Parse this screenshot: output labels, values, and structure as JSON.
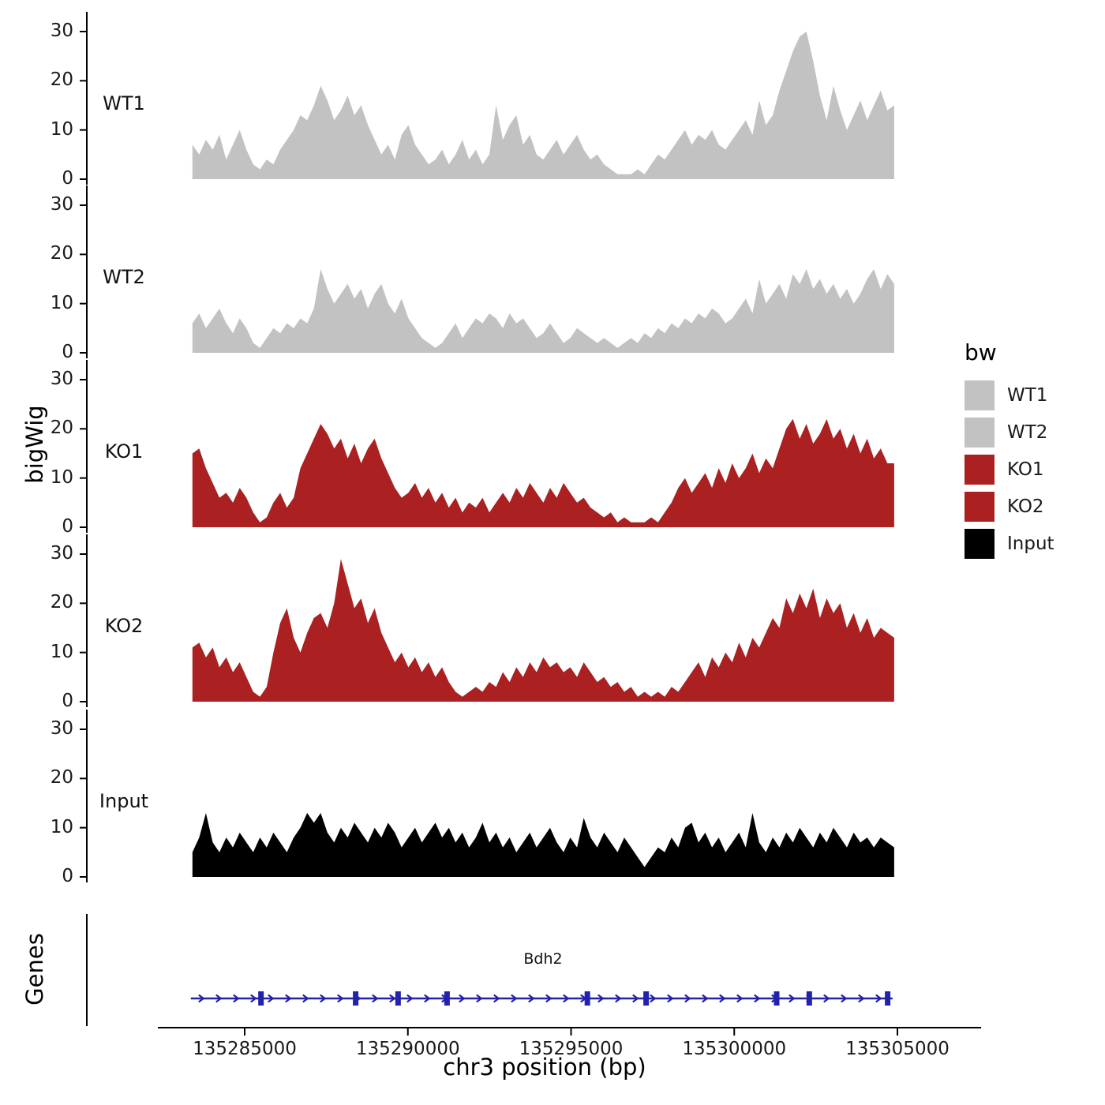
{
  "chart_data": {
    "type": "area",
    "title": "",
    "xlabel": "chr3 position (bp)",
    "ylabel": "bigWig",
    "ylim": [
      0,
      30
    ],
    "y_ticks": [
      30,
      20,
      10,
      0
    ],
    "x_ticks": [
      135285000,
      135290000,
      135295000,
      135300000,
      135305000
    ],
    "x_start": 135283400,
    "x_end": 135304900,
    "grid": "off",
    "legend_position": "right",
    "tracks": [
      {
        "name": "WT1",
        "color": "#c2c2c2",
        "values": [
          7,
          5,
          8,
          6,
          9,
          4,
          7,
          10,
          6,
          3,
          2,
          4,
          3,
          6,
          8,
          10,
          13,
          12,
          15,
          19,
          16,
          12,
          14,
          17,
          13,
          15,
          11,
          8,
          5,
          7,
          4,
          9,
          11,
          7,
          5,
          3,
          4,
          6,
          3,
          5,
          8,
          4,
          6,
          3,
          5,
          15,
          8,
          11,
          13,
          7,
          9,
          5,
          4,
          6,
          8,
          5,
          7,
          9,
          6,
          4,
          5,
          3,
          2,
          1,
          1,
          1,
          2,
          1,
          3,
          5,
          4,
          6,
          8,
          10,
          7,
          9,
          8,
          10,
          7,
          6,
          8,
          10,
          12,
          9,
          16,
          11,
          13,
          18,
          22,
          26,
          29,
          30,
          24,
          17,
          12,
          19,
          14,
          10,
          13,
          16,
          12,
          15,
          18,
          14,
          15
        ]
      },
      {
        "name": "WT2",
        "color": "#c2c2c2",
        "values": [
          6,
          8,
          5,
          7,
          9,
          6,
          4,
          7,
          5,
          2,
          1,
          3,
          5,
          4,
          6,
          5,
          7,
          6,
          9,
          17,
          13,
          10,
          12,
          14,
          11,
          13,
          9,
          12,
          14,
          10,
          8,
          11,
          7,
          5,
          3,
          2,
          1,
          2,
          4,
          6,
          3,
          5,
          7,
          6,
          8,
          7,
          5,
          8,
          6,
          7,
          5,
          3,
          4,
          6,
          4,
          2,
          3,
          5,
          4,
          3,
          2,
          3,
          2,
          1,
          2,
          3,
          2,
          4,
          3,
          5,
          4,
          6,
          5,
          7,
          6,
          8,
          7,
          9,
          8,
          6,
          7,
          9,
          11,
          8,
          15,
          10,
          12,
          14,
          11,
          16,
          14,
          17,
          13,
          15,
          12,
          14,
          11,
          13,
          10,
          12,
          15,
          17,
          13,
          16,
          14
        ]
      },
      {
        "name": "KO1",
        "color": "#ab2020",
        "values": [
          15,
          16,
          12,
          9,
          6,
          7,
          5,
          8,
          6,
          3,
          1,
          2,
          5,
          7,
          4,
          6,
          12,
          15,
          18,
          21,
          19,
          16,
          18,
          14,
          17,
          13,
          16,
          18,
          14,
          11,
          8,
          6,
          7,
          9,
          6,
          8,
          5,
          7,
          4,
          6,
          3,
          5,
          4,
          6,
          3,
          5,
          7,
          5,
          8,
          6,
          9,
          7,
          5,
          8,
          6,
          9,
          7,
          5,
          6,
          4,
          3,
          2,
          3,
          1,
          2,
          1,
          1,
          1,
          2,
          1,
          3,
          5,
          8,
          10,
          7,
          9,
          11,
          8,
          12,
          9,
          13,
          10,
          12,
          15,
          11,
          14,
          12,
          16,
          20,
          22,
          18,
          21,
          17,
          19,
          22,
          18,
          20,
          16,
          19,
          15,
          18,
          14,
          16,
          13,
          13
        ]
      },
      {
        "name": "KO2",
        "color": "#ab2020",
        "values": [
          11,
          12,
          9,
          11,
          7,
          9,
          6,
          8,
          5,
          2,
          1,
          3,
          10,
          16,
          19,
          13,
          10,
          14,
          17,
          18,
          15,
          20,
          29,
          24,
          19,
          21,
          16,
          19,
          14,
          11,
          8,
          10,
          7,
          9,
          6,
          8,
          5,
          7,
          4,
          2,
          1,
          2,
          3,
          2,
          4,
          3,
          6,
          4,
          7,
          5,
          8,
          6,
          9,
          7,
          8,
          6,
          7,
          5,
          8,
          6,
          4,
          5,
          3,
          4,
          2,
          3,
          1,
          2,
          1,
          2,
          1,
          3,
          2,
          4,
          6,
          8,
          5,
          9,
          7,
          10,
          8,
          12,
          9,
          13,
          11,
          14,
          17,
          15,
          21,
          18,
          22,
          19,
          23,
          17,
          21,
          18,
          20,
          15,
          18,
          14,
          17,
          13,
          15,
          14,
          13
        ]
      },
      {
        "name": "Input",
        "color": "#000000",
        "values": [
          5,
          8,
          13,
          7,
          5,
          8,
          6,
          9,
          7,
          5,
          8,
          6,
          9,
          7,
          5,
          8,
          10,
          13,
          11,
          13,
          9,
          7,
          10,
          8,
          11,
          9,
          7,
          10,
          8,
          11,
          9,
          6,
          8,
          10,
          7,
          9,
          11,
          8,
          10,
          7,
          9,
          6,
          8,
          11,
          7,
          9,
          6,
          8,
          5,
          7,
          9,
          6,
          8,
          10,
          7,
          5,
          8,
          6,
          12,
          8,
          6,
          9,
          7,
          5,
          8,
          6,
          4,
          2,
          4,
          6,
          5,
          8,
          6,
          10,
          11,
          7,
          9,
          6,
          8,
          5,
          7,
          9,
          6,
          13,
          7,
          5,
          8,
          6,
          9,
          7,
          10,
          8,
          6,
          9,
          7,
          10,
          8,
          6,
          9,
          7,
          8,
          6,
          8,
          7,
          6
        ]
      }
    ],
    "genes_panel": {
      "label": "Genes",
      "gene": {
        "name": "Bdh2",
        "strand": "+",
        "start": 135283350,
        "end": 135304850,
        "color": "#2222aa",
        "exons": [
          135285500,
          135288400,
          135289700,
          135291200,
          135295500,
          135297300,
          135301300,
          135302300,
          135304700
        ]
      }
    },
    "legend": {
      "title": "bw",
      "items": [
        {
          "label": "WT1",
          "color": "#c2c2c2"
        },
        {
          "label": "WT2",
          "color": "#c2c2c2"
        },
        {
          "label": "KO1",
          "color": "#ab2020"
        },
        {
          "label": "KO2",
          "color": "#ab2020"
        },
        {
          "label": "Input",
          "color": "#000000"
        }
      ]
    }
  }
}
